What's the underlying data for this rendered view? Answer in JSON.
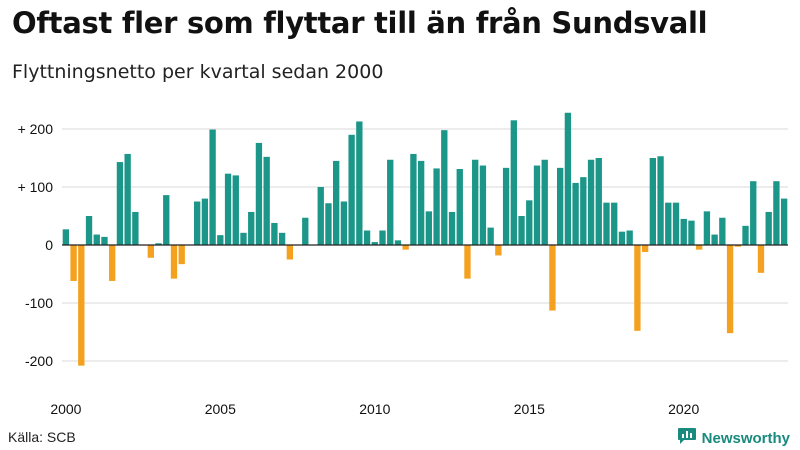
{
  "title": "Oftast fler som flyttar till än från Sundsvall",
  "subtitle": "Flyttningsnetto per kvartal sedan 2000",
  "source": "Källa: SCB",
  "brand": {
    "label": "Newsworthy",
    "icon": "newsworthy-logo-icon"
  },
  "colors": {
    "positive": "#1b9688",
    "negative": "#f4a11f",
    "grid": "#d9d9d9",
    "zero": "#222222"
  },
  "chart_data": {
    "type": "bar",
    "title": "Oftast fler som flyttar till än från Sundsvall",
    "subtitle": "Flyttningsnetto per kvartal sedan 2000",
    "xlabel": "",
    "ylabel": "",
    "x_start": "2000-Q1",
    "frequency": "quarterly",
    "ylim": [
      -215,
      230
    ],
    "y_ticks": [
      200,
      100,
      0,
      -100,
      -200
    ],
    "y_tick_labels": [
      "+ 200",
      "+ 100",
      "0",
      "-100",
      "-200"
    ],
    "x_ticks": [
      "2000",
      "2005",
      "2010",
      "2015",
      "2020"
    ],
    "grid": true,
    "series": [
      {
        "values": [
          27,
          -62,
          -208,
          50,
          18,
          14,
          -62,
          143,
          157,
          57,
          0,
          -22,
          3,
          86,
          -58,
          -33,
          0,
          75,
          80,
          199,
          17,
          123,
          120,
          21,
          57,
          176,
          152,
          38,
          21,
          -25,
          0,
          47,
          0,
          100,
          72,
          145,
          75,
          190,
          213,
          25,
          5,
          25,
          147,
          8,
          -8,
          157,
          145,
          58,
          132,
          198,
          57,
          131,
          -58,
          147,
          137,
          30,
          -18,
          133,
          215,
          50,
          77,
          137,
          147,
          -113,
          133,
          228,
          107,
          117,
          147,
          150,
          73,
          73,
          23,
          25,
          -148,
          -12,
          150,
          153,
          73,
          73,
          45,
          42,
          -8,
          58,
          18,
          47,
          -152,
          -3,
          33,
          110,
          -48,
          57,
          110,
          80
        ]
      }
    ]
  }
}
